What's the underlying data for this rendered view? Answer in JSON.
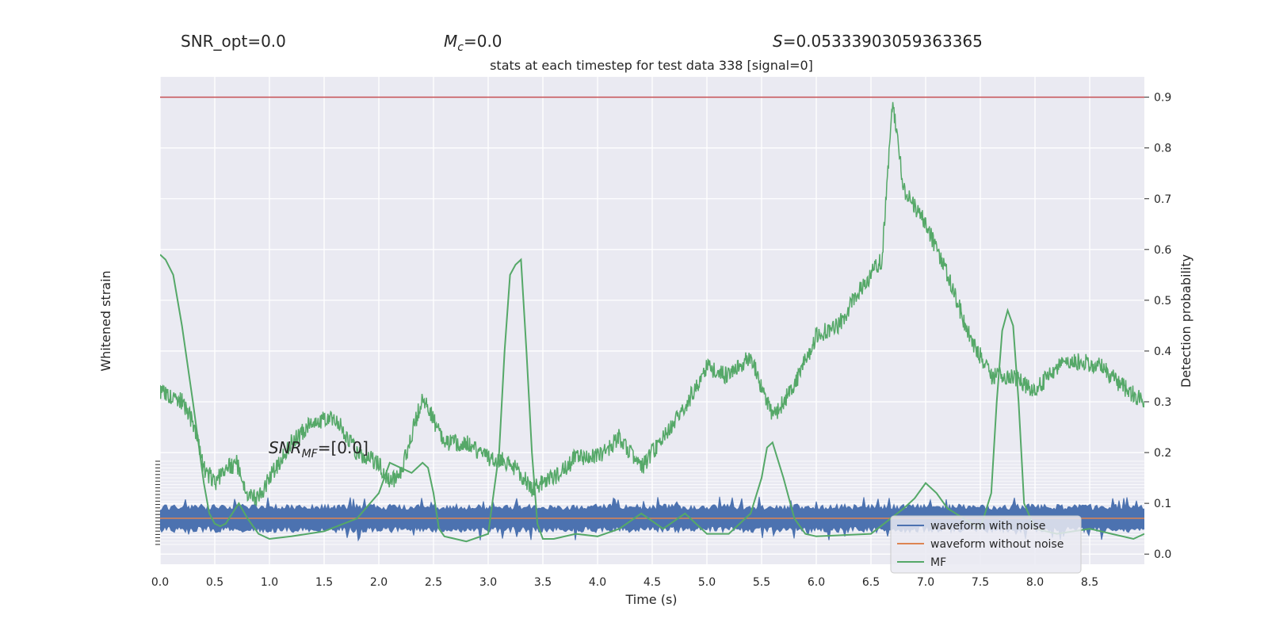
{
  "header": {
    "snr_opt": "SNR_opt=0.0",
    "mc_symbol": "M",
    "mc_sub": "c",
    "mc_value": "=0.0",
    "s_symbol": "S",
    "s_value": "=0.05333903059363365"
  },
  "chart_data": {
    "type": "line",
    "title": "stats at each timestep for test data 338 [signal=0]",
    "xlabel": "Time (s)",
    "ylabel_left": "Whitened strain",
    "ylabel_right": "Detection probability",
    "xlim": [
      0.0,
      9.0
    ],
    "ylim_right": [
      -0.02,
      0.94
    ],
    "x_ticks": [
      "0.0",
      "0.5",
      "1.0",
      "1.5",
      "2.0",
      "2.5",
      "3.0",
      "3.5",
      "4.0",
      "4.5",
      "5.0",
      "5.5",
      "6.0",
      "6.5",
      "7.0",
      "7.5",
      "8.0",
      "8.5"
    ],
    "y_ticks_right": [
      "0.0",
      "0.1",
      "0.2",
      "0.3",
      "0.4",
      "0.5",
      "0.6",
      "0.7",
      "0.8",
      "0.9"
    ],
    "threshold": {
      "value": 0.9,
      "color": "#c44e52"
    },
    "grid": true,
    "legend_position": "lower-right",
    "snr_mf_annotation": {
      "symbol": "SNR",
      "sub": "MF",
      "value": "=[0.0]"
    },
    "series": [
      {
        "name": "waveform with noise",
        "color": "#4c72b0",
        "kind": "strain-noise"
      },
      {
        "name": "waveform without noise",
        "color": "#dd8452",
        "kind": "strain-clean"
      },
      {
        "name": "MF",
        "color": "#55a868",
        "kind": "mf"
      }
    ],
    "detection_probability": {
      "color": "#55a868",
      "x": [
        0.0,
        0.2,
        0.3,
        0.4,
        0.5,
        0.6,
        0.7,
        0.8,
        0.9,
        1.0,
        1.2,
        1.4,
        1.6,
        1.8,
        2.0,
        2.1,
        2.2,
        2.4,
        2.6,
        2.8,
        3.0,
        3.2,
        3.4,
        3.6,
        3.8,
        4.0,
        4.2,
        4.4,
        4.6,
        4.8,
        5.0,
        5.2,
        5.4,
        5.6,
        5.8,
        6.0,
        6.2,
        6.4,
        6.6,
        6.7,
        6.8,
        7.0,
        7.2,
        7.4,
        7.6,
        7.8,
        8.0,
        8.2,
        8.4,
        8.6,
        8.8,
        9.0
      ],
      "y": [
        0.32,
        0.3,
        0.26,
        0.17,
        0.14,
        0.17,
        0.18,
        0.12,
        0.11,
        0.15,
        0.22,
        0.26,
        0.27,
        0.2,
        0.18,
        0.14,
        0.16,
        0.31,
        0.22,
        0.22,
        0.19,
        0.18,
        0.13,
        0.15,
        0.19,
        0.19,
        0.23,
        0.17,
        0.23,
        0.29,
        0.37,
        0.35,
        0.39,
        0.27,
        0.33,
        0.43,
        0.45,
        0.52,
        0.58,
        0.89,
        0.72,
        0.65,
        0.55,
        0.43,
        0.35,
        0.35,
        0.32,
        0.37,
        0.38,
        0.37,
        0.33,
        0.3
      ]
    },
    "mf_curve": {
      "x": [
        0.0,
        0.05,
        0.12,
        0.2,
        0.3,
        0.4,
        0.45,
        0.5,
        0.55,
        0.6,
        0.66,
        0.72,
        0.8,
        0.9,
        1.0,
        1.2,
        1.5,
        1.8,
        2.0,
        2.1,
        2.2,
        2.3,
        2.4,
        2.45,
        2.5,
        2.55,
        2.6,
        2.7,
        2.8,
        3.0,
        3.1,
        3.15,
        3.2,
        3.25,
        3.3,
        3.35,
        3.4,
        3.45,
        3.5,
        3.6,
        3.8,
        4.0,
        4.2,
        4.4,
        4.6,
        4.8,
        5.0,
        5.2,
        5.4,
        5.5,
        5.55,
        5.6,
        5.7,
        5.8,
        5.9,
        6.0,
        6.5,
        6.8,
        6.9,
        7.0,
        7.1,
        7.2,
        7.35,
        7.5,
        7.6,
        7.65,
        7.7,
        7.75,
        7.8,
        7.85,
        7.9,
        8.0,
        8.2,
        8.5,
        8.7,
        8.9,
        9.0
      ],
      "y": [
        0.59,
        0.58,
        0.55,
        0.45,
        0.3,
        0.14,
        0.08,
        0.06,
        0.055,
        0.06,
        0.08,
        0.1,
        0.07,
        0.04,
        0.03,
        0.035,
        0.045,
        0.07,
        0.12,
        0.18,
        0.17,
        0.16,
        0.18,
        0.17,
        0.12,
        0.05,
        0.035,
        0.03,
        0.025,
        0.04,
        0.2,
        0.4,
        0.55,
        0.57,
        0.58,
        0.4,
        0.2,
        0.06,
        0.03,
        0.03,
        0.04,
        0.035,
        0.05,
        0.08,
        0.05,
        0.08,
        0.04,
        0.04,
        0.08,
        0.15,
        0.21,
        0.22,
        0.15,
        0.07,
        0.04,
        0.035,
        0.04,
        0.09,
        0.11,
        0.14,
        0.12,
        0.09,
        0.07,
        0.05,
        0.12,
        0.3,
        0.44,
        0.48,
        0.45,
        0.3,
        0.1,
        0.05,
        0.04,
        0.05,
        0.04,
        0.03,
        0.04
      ]
    }
  }
}
